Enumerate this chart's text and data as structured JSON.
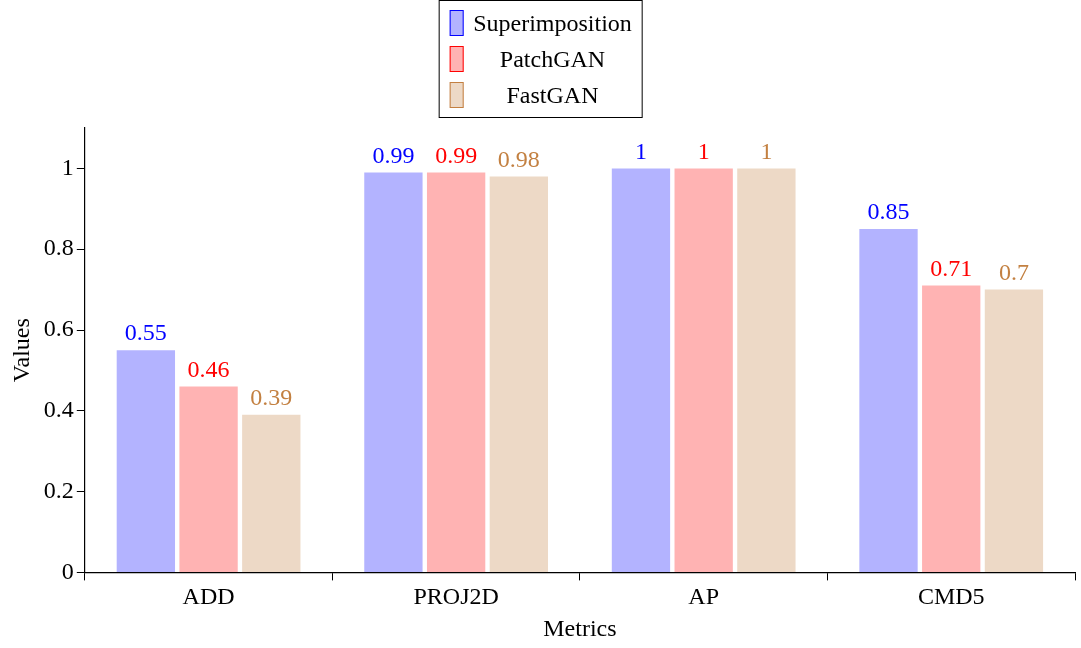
{
  "chart_data": {
    "type": "bar",
    "xlabel": "Metrics",
    "ylabel": "Values",
    "categories": [
      "ADD",
      "PROJ2D",
      "AP",
      "CMD5"
    ],
    "series": [
      {
        "name": "Superimposition",
        "color": "#b3b3ff",
        "values": [
          0.55,
          0.99,
          1,
          0.85
        ]
      },
      {
        "name": "PatchGAN",
        "color": "#ffb3b3",
        "values": [
          0.46,
          0.99,
          1,
          0.71
        ]
      },
      {
        "name": "FastGAN",
        "color": "#edd9c6",
        "values": [
          0.39,
          0.98,
          1,
          0.7
        ]
      }
    ],
    "ylim": [
      0,
      1.1
    ],
    "yticks": [
      0,
      0.2,
      0.4,
      0.6,
      0.8,
      1
    ],
    "grid": false,
    "legend": "top",
    "data_labels": true
  }
}
